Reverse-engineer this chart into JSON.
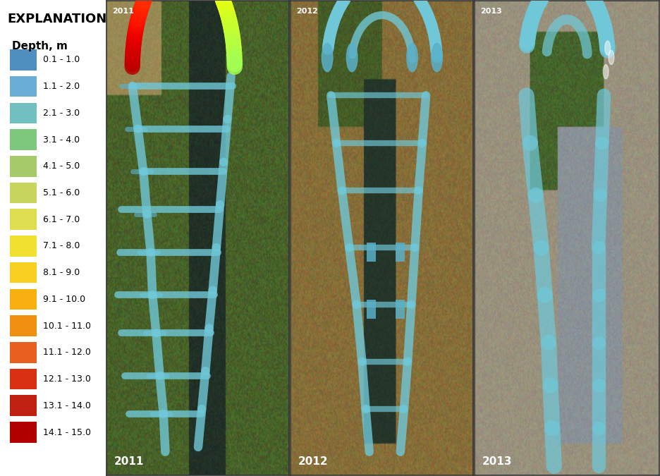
{
  "explanation_title": "EXPLANATION",
  "depth_label": "Depth, m",
  "legend_entries": [
    {
      "label": "0.1 - 1.0",
      "color": "#4e8fc0"
    },
    {
      "label": "1.1 - 2.0",
      "color": "#6aaed6"
    },
    {
      "label": "2.1 - 3.0",
      "color": "#72bfbf"
    },
    {
      "label": "3.1 - 4.0",
      "color": "#7dc87c"
    },
    {
      "label": "4.1 - 5.0",
      "color": "#a6c96a"
    },
    {
      "label": "5.1 - 6.0",
      "color": "#c8d660"
    },
    {
      "label": "6.1 - 7.0",
      "color": "#dede50"
    },
    {
      "label": "7.1 - 8.0",
      "color": "#f0e030"
    },
    {
      "label": "8.1 - 9.0",
      "color": "#f8d020"
    },
    {
      "label": "9.1 - 10.0",
      "color": "#f8b010"
    },
    {
      "label": "10.1 - 11.0",
      "color": "#f09010"
    },
    {
      "label": "11.1 - 12.0",
      "color": "#e86020"
    },
    {
      "label": "12.1 - 13.0",
      "color": "#d83010"
    },
    {
      "label": "13.1 - 14.0",
      "color": "#c02010"
    },
    {
      "label": "14.1 - 15.0",
      "color": "#b00000"
    }
  ],
  "background_color": "#ffffff",
  "year_label_fontsize": 11,
  "explanation_fontsize": 13,
  "depth_label_fontsize": 11,
  "legend_item_fontsize": 9,
  "river_color": "#70c8d8",
  "river_color_deep": "#5ab0c8"
}
